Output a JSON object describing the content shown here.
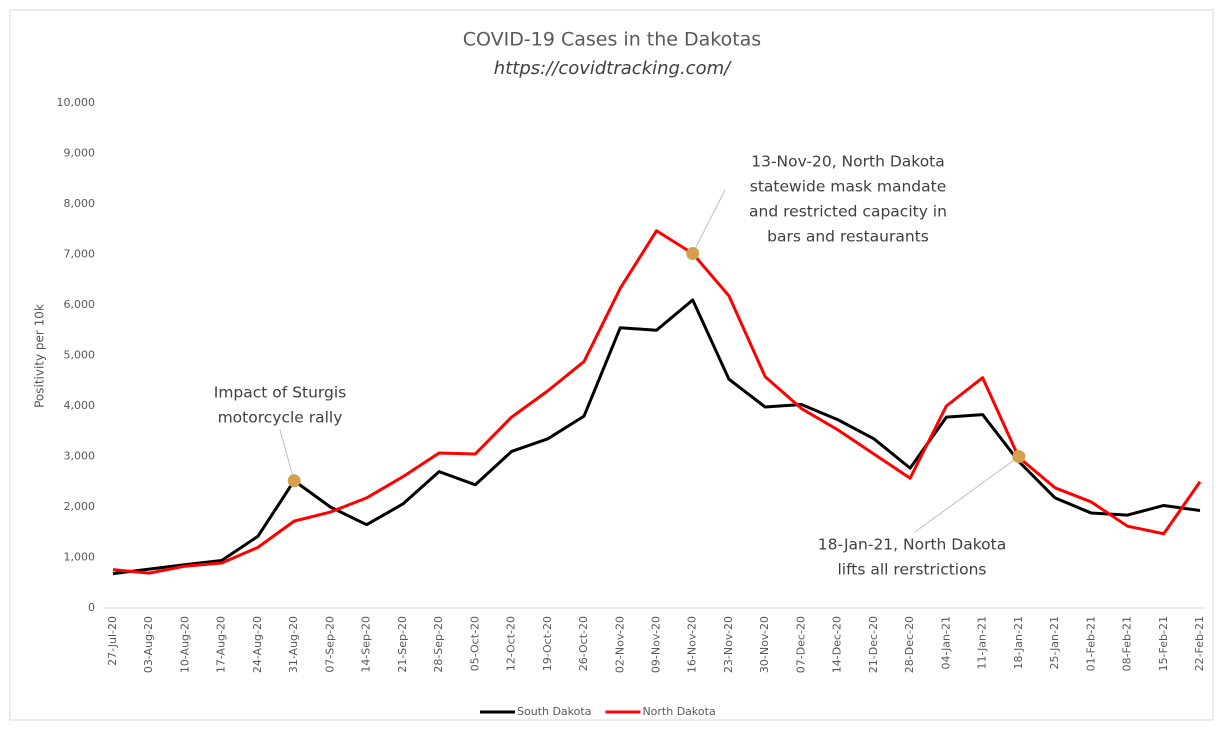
{
  "chart_data": {
    "type": "line",
    "title": "COVID-19 Cases in the Dakotas",
    "subtitle": "https://covidtracking.com/",
    "y_label": "Positivity per 10k",
    "categories": [
      "27-Jul-20",
      "03-Aug-20",
      "10-Aug-20",
      "17-Aug-20",
      "24-Aug-20",
      "31-Aug-20",
      "07-Sep-20",
      "14-Sep-20",
      "21-Sep-20",
      "28-Sep-20",
      "05-Oct-20",
      "12-Oct-20",
      "19-Oct-20",
      "26-Oct-20",
      "02-Nov-20",
      "09-Nov-20",
      "16-Nov-20",
      "23-Nov-20",
      "30-Nov-20",
      "07-Dec-20",
      "14-Dec-20",
      "21-Dec-20",
      "28-Dec-20",
      "04-Jan-21",
      "11-Jan-21",
      "18-Jan-21",
      "25-Jan-21",
      "01-Feb-21",
      "08-Feb-21",
      "15-Feb-21",
      "22-Feb-21"
    ],
    "series": [
      {
        "name": "South Dakota",
        "color": "#000000",
        "values": [
          680,
          770,
          860,
          940,
          1420,
          2520,
          2000,
          1650,
          2060,
          2700,
          2440,
          3100,
          3350,
          3800,
          5550,
          5500,
          6100,
          4530,
          3980,
          4030,
          3730,
          3350,
          2770,
          3780,
          3830,
          2900,
          2180,
          1880,
          1840,
          2030,
          1930
        ]
      },
      {
        "name": "North Dakota",
        "color": "#ff0000",
        "values": [
          760,
          690,
          830,
          890,
          1200,
          1720,
          1900,
          2180,
          2600,
          3070,
          3050,
          3780,
          4300,
          4880,
          6330,
          7470,
          7020,
          6180,
          4580,
          3950,
          3530,
          3050,
          2570,
          4000,
          4560,
          2980,
          2380,
          2100,
          1620,
          1470,
          2500
        ]
      }
    ],
    "ylim": [
      0,
      10000
    ],
    "yticks": [
      0,
      {
        "value": 1000,
        "label": "1,000"
      },
      {
        "value": 2000,
        "label": "2,000"
      },
      {
        "value": 3000,
        "label": "3,000"
      },
      {
        "value": 4000,
        "label": "4,000"
      },
      {
        "value": 5000,
        "label": "5,000"
      },
      {
        "value": 6000,
        "label": "6,000"
      },
      {
        "value": 7000,
        "label": "7,000"
      },
      {
        "value": 8000,
        "label": "8,000"
      },
      {
        "value": 9000,
        "label": "9,000"
      },
      {
        "value": 10000,
        "label": "10,000"
      }
    ],
    "grid": false,
    "legend": "bottom",
    "annotations": [
      {
        "text": [
          "Impact of Sturgis",
          "motorcycle rally"
        ],
        "x": "31-Aug-20",
        "y": 2520,
        "color": "#d4a04c"
      },
      {
        "text": [
          "13-Nov-20, North Dakota",
          "statewide mask mandate",
          "and restricted capacity in",
          "bars and restaurants"
        ],
        "x": "16-Nov-20",
        "y": 7020,
        "color": "#d4a04c"
      },
      {
        "text": [
          "18-Jan-21, North Dakota",
          "lifts all rerstrictions"
        ],
        "x": "18-Jan-21",
        "y": 3000,
        "color": "#d4a04c"
      }
    ]
  }
}
